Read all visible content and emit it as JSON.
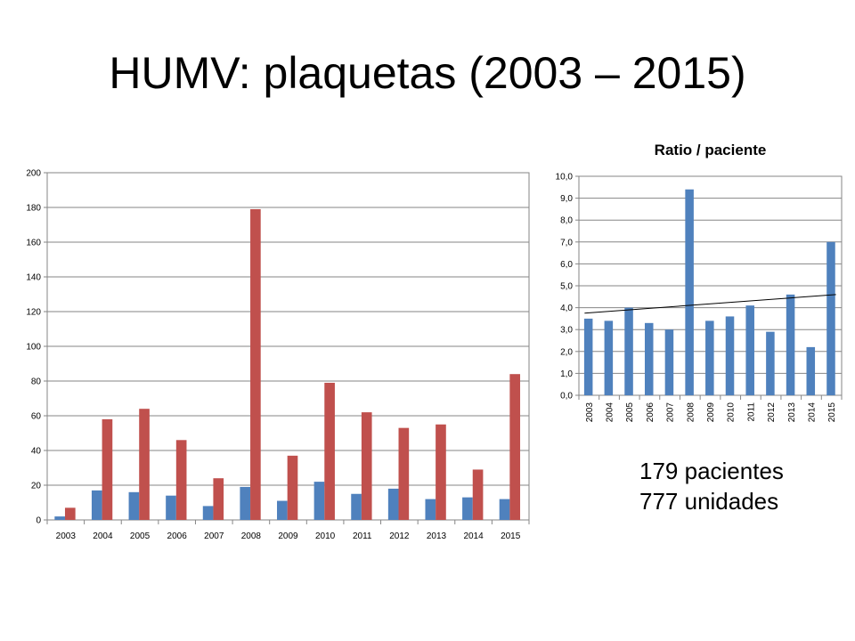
{
  "page": {
    "title": "HUMV: plaquetas (2003 – 2015)",
    "summary": {
      "line1": "179 pacientes",
      "line2": "777 unidades"
    }
  },
  "colors": {
    "series_blue": "#4F81BD",
    "series_red": "#C0504D",
    "grid": "#868686",
    "trendline": "#000000"
  },
  "chart_data": [
    {
      "type": "bar",
      "title": "",
      "xlabel": "",
      "ylabel": "",
      "categories": [
        "2003",
        "2004",
        "2005",
        "2006",
        "2007",
        "2008",
        "2009",
        "2010",
        "2011",
        "2012",
        "2013",
        "2014",
        "2015"
      ],
      "series": [
        {
          "values": [
            2,
            17,
            16,
            14,
            8,
            19,
            11,
            22,
            15,
            18,
            12,
            13,
            12
          ]
        },
        {
          "values": [
            7,
            58,
            64,
            46,
            24,
            179,
            37,
            79,
            62,
            53,
            55,
            29,
            84
          ]
        }
      ],
      "ylim": [
        0,
        200
      ],
      "yticks": [
        "0",
        "20",
        "40",
        "60",
        "80",
        "100",
        "120",
        "140",
        "160",
        "180",
        "200"
      ],
      "grid": true,
      "legend": "none"
    },
    {
      "type": "bar",
      "title": "Ratio / paciente",
      "xlabel": "",
      "ylabel": "",
      "categories": [
        "2003",
        "2004",
        "2005",
        "2006",
        "2007",
        "2008",
        "2009",
        "2010",
        "2011",
        "2012",
        "2013",
        "2014",
        "2015"
      ],
      "series": [
        {
          "values": [
            3.5,
            3.4,
            4.0,
            3.3,
            3.0,
            9.4,
            3.4,
            3.6,
            4.1,
            2.9,
            4.6,
            2.2,
            7.0
          ]
        }
      ],
      "trendline": {
        "type": "linear",
        "start": 3.75,
        "end": 4.6
      },
      "ylim": [
        0,
        10
      ],
      "yticks": [
        "0,0",
        "1,0",
        "2,0",
        "3,0",
        "4,0",
        "5,0",
        "6,0",
        "7,0",
        "8,0",
        "9,0",
        "10,0"
      ],
      "grid": true,
      "legend": "none"
    }
  ]
}
